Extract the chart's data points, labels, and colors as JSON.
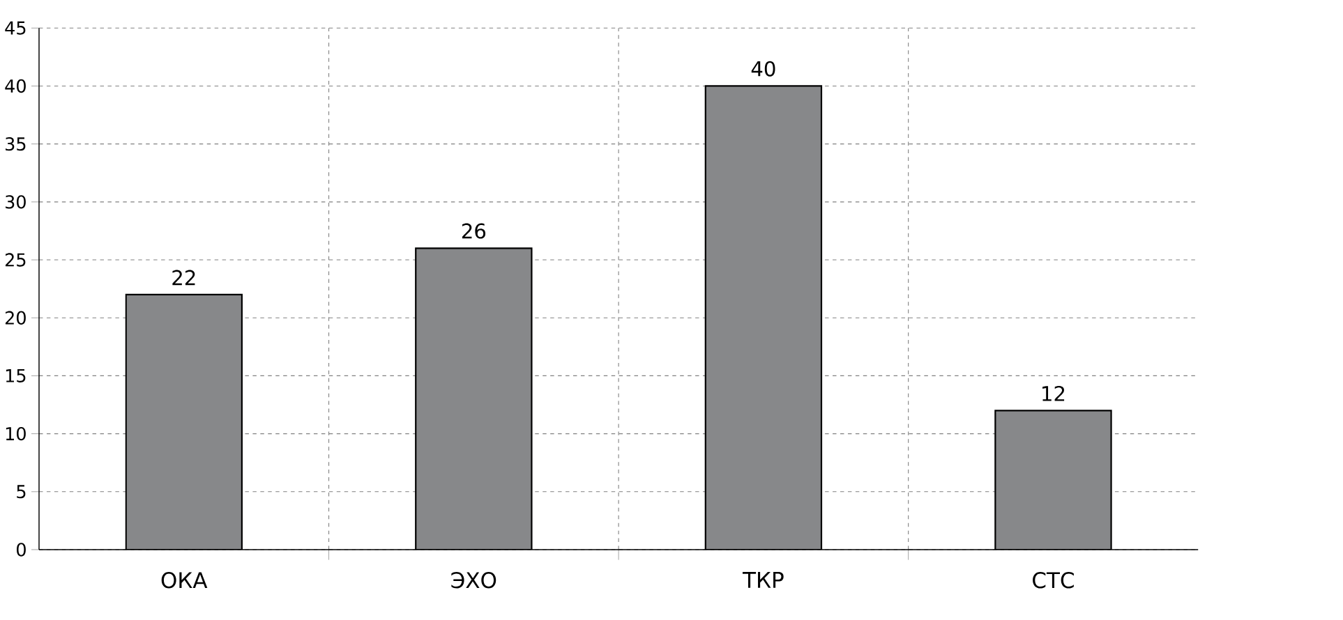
{
  "chart_data": {
    "type": "bar",
    "categories": [
      "ОКА",
      "ЭХО",
      "ТКР",
      "СТС"
    ],
    "values": [
      22,
      26,
      40,
      12
    ],
    "color": "#87888a",
    "ylim": [
      0,
      45
    ],
    "yticks": [
      0,
      5,
      10,
      15,
      20,
      25,
      30,
      35,
      40,
      45
    ],
    "grid": true,
    "data_labels": true
  }
}
